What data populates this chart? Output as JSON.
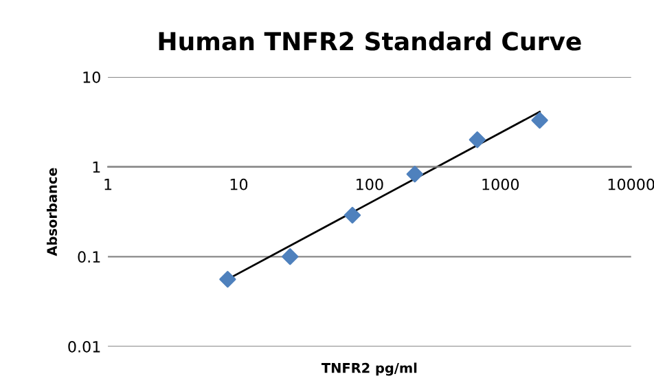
{
  "chart_data": {
    "type": "scatter",
    "title": "Human TNFR2 Standard Curve",
    "xlabel": "TNFR2 pg/ml",
    "ylabel": "Absorbance",
    "log": "xy",
    "xlim": [
      1,
      10000
    ],
    "ylim": [
      0.01,
      10
    ],
    "xticks": [
      1,
      10,
      100,
      1000,
      10000
    ],
    "yticks": [
      0.01,
      0.1,
      1,
      10
    ],
    "grid": "y",
    "marker": "diamond",
    "series": [
      {
        "color": "#4f81bd",
        "x": [
          8.23,
          24.7,
          74,
          222,
          667,
          2000
        ],
        "values": [
          0.056,
          0.1,
          0.29,
          0.83,
          2.0,
          3.3
        ]
      },
      {
        "type": "line",
        "color": "#000000",
        "marker": "none",
        "x": [
          8.23,
          2000
        ],
        "values": [
          0.056,
          4.1
        ]
      }
    ]
  }
}
